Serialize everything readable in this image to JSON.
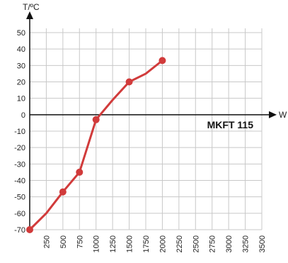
{
  "chart_data": {
    "type": "line",
    "title": "",
    "xlabel": "W",
    "ylabel": "T/ºC",
    "annotation": "MKFT 115",
    "grid": true,
    "xlim": [
      0,
      3500
    ],
    "ylim": [
      -70,
      50
    ],
    "x_ticks": [
      250,
      500,
      750,
      1000,
      1250,
      1500,
      1750,
      2000,
      2250,
      2500,
      2750,
      3000,
      3250,
      3500
    ],
    "x_tick_labels": [
      "250",
      "500",
      "750",
      "1000",
      "1250",
      "1500",
      "1750",
      "2000",
      "2250",
      "2500",
      "2750",
      "3000",
      "3250",
      "3500"
    ],
    "y_ticks": [
      50,
      40,
      30,
      20,
      10,
      0,
      -10,
      -20,
      -30,
      -40,
      -50,
      -60,
      -70
    ],
    "y_tick_labels": [
      "50",
      "40",
      "30",
      "20",
      "10",
      "0",
      "-10",
      "-20",
      "-30",
      "-40",
      "-50",
      "-60",
      "-70"
    ],
    "series": [
      {
        "color": "#d13b3b",
        "x": [
          0,
          250,
          500,
          750,
          1000,
          1250,
          1500,
          1750,
          2000
        ],
        "y": [
          -70,
          -60,
          -47,
          -35,
          -3,
          9,
          20,
          25,
          33
        ],
        "markers_x": [
          0,
          500,
          750,
          1000,
          1500,
          2000
        ],
        "markers_y": [
          -70,
          -47,
          -35,
          -3,
          20,
          33
        ]
      }
    ]
  }
}
